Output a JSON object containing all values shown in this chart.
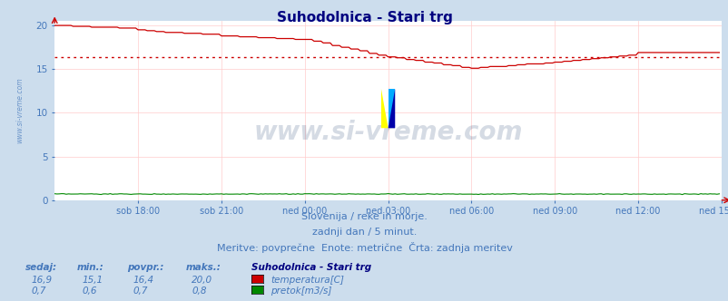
{
  "title": "Suhodolnica - Stari trg",
  "title_color": "#000080",
  "bg_color": "#ccdded",
  "plot_bg_color": "#ffffff",
  "grid_color": "#ffcccc",
  "xticklabels": [
    "sob 18:00",
    "sob 21:00",
    "ned 00:00",
    "ned 03:00",
    "ned 06:00",
    "ned 09:00",
    "ned 12:00",
    "ned 15:00"
  ],
  "yticks": [
    0,
    5,
    10,
    15,
    20
  ],
  "ylim_max": 20.5,
  "watermark_text": "www.si-vreme.com",
  "watermark_color": "#1a3a6a",
  "subtitle1": "Slovenija / reke in morje.",
  "subtitle2": "zadnji dan / 5 minut.",
  "subtitle3": "Meritve: povprečne  Enote: metrične  Črta: zadnja meritev",
  "subtitle_color": "#4477bb",
  "avg_line_value": 16.4,
  "temp_color": "#cc0000",
  "flow_color": "#008800",
  "left_label": "www.si-vreme.com",
  "left_label_color": "#4477bb",
  "n_points": 288,
  "stat_headers": [
    "sedaj:",
    "min.:",
    "povpr.:",
    "maks.:"
  ],
  "stat_values_temp": [
    "16,9",
    "15,1",
    "16,4",
    "20,0"
  ],
  "stat_values_flow": [
    "0,7",
    "0,6",
    "0,7",
    "0,8"
  ],
  "legend_station": "Suhodolnica - Stari trg",
  "legend_temp": "temperatura[C]",
  "legend_flow": "pretok[m3/s]"
}
